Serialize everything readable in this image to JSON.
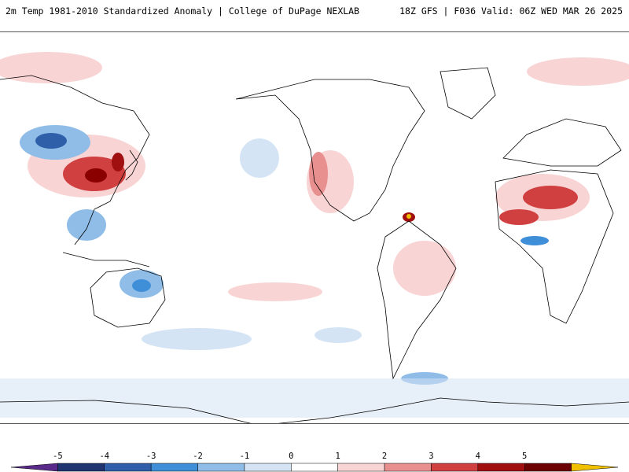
{
  "header": {
    "title_left": "2m Temp 1981-2010 Standardized Anomaly | College of DuPage NEXLAB",
    "title_right": "18Z GFS | F036 Valid: 06Z WED MAR 26 2025"
  },
  "colorbar": {
    "labels": [
      "-5",
      "-4",
      "-3",
      "-2",
      "-1",
      "0",
      "1",
      "2",
      "3",
      "4",
      "5"
    ],
    "colors": [
      "#5a2a8a",
      "#1f3470",
      "#2f5fa8",
      "#3f8fd8",
      "#8fbde8",
      "#d4e4f4",
      "#ffffff",
      "#f8d4d4",
      "#e89090",
      "#d04040",
      "#a01010",
      "#6a0000",
      "#f0c000"
    ]
  },
  "map": {
    "projection": "Pacific-centered global map",
    "colors": {
      "land_outline": "#000000",
      "warm_light": "#f8d4d4",
      "warm_mid": "#e89090",
      "warm_strong": "#c82828",
      "warm_extreme": "#8a0000",
      "cool_light": "#d4e4f4",
      "cool_mid": "#8fbde8",
      "cool_strong": "#3f8fd8"
    }
  }
}
